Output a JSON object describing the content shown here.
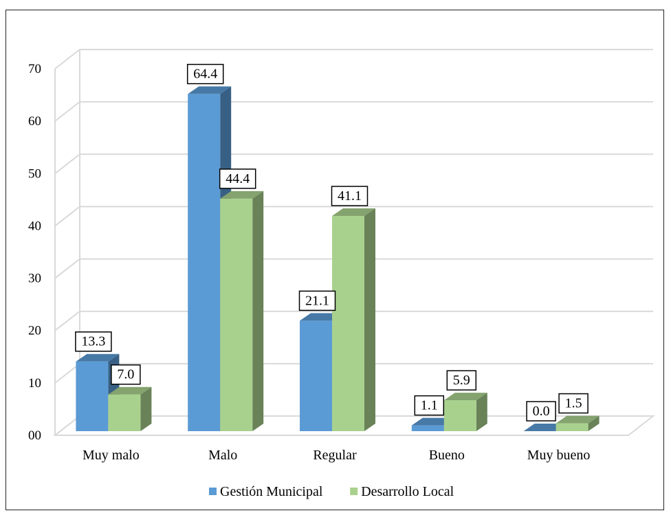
{
  "chart_data": {
    "type": "bar",
    "categories": [
      "Muy malo",
      "Malo",
      "Regular",
      "Bueno",
      "Muy bueno"
    ],
    "series": [
      {
        "name": "Gestión Municipal",
        "values": [
          13.3,
          64.4,
          21.1,
          1.1,
          0.0
        ],
        "labels": [
          "13.3",
          "64.4",
          "21.1",
          "1.1",
          "0.0"
        ],
        "color": "#5b9bd5"
      },
      {
        "name": "Desarrollo Local",
        "values": [
          7.0,
          44.4,
          41.1,
          5.9,
          1.5
        ],
        "labels": [
          "7.0",
          "44.4",
          "41.1",
          "5.9",
          "1.5"
        ],
        "color": "#a9d18e"
      }
    ],
    "ylim": [
      0,
      70
    ],
    "yticks": [
      "00",
      "10",
      "20",
      "30",
      "40",
      "50",
      "60",
      "70"
    ],
    "grid": true,
    "legend_position": "bottom",
    "style": "3d-clustered-column"
  }
}
